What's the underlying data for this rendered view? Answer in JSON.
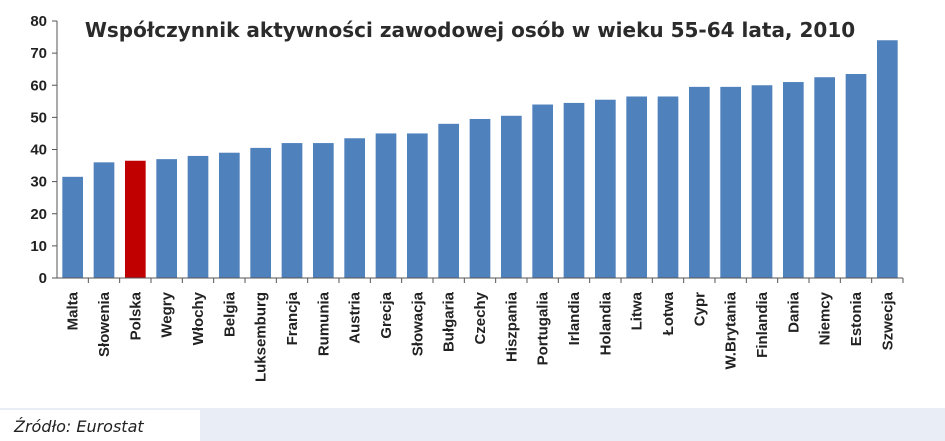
{
  "chart_data": {
    "type": "bar",
    "title": "Współczynnik aktywności zawodowej osób w wieku 55-64 lata, 2010",
    "xlabel": "",
    "ylabel": "",
    "ylim": [
      0,
      80
    ],
    "yticks": [
      0,
      10,
      20,
      30,
      40,
      50,
      60,
      70,
      80
    ],
    "grid": false,
    "categories": [
      "Malta",
      "Słowenia",
      "Polska",
      "Wegry",
      "Włochy",
      "Belgia",
      "Luksemburg",
      "Francja",
      "Rumunia",
      "Austria",
      "Grecja",
      "Słowacja",
      "Bułgaria",
      "Czechy",
      "Hiszpania",
      "Portugalia",
      "Irlandia",
      "Holandia",
      "Litwa",
      "Łotwa",
      "Cypr",
      "W.Brytania",
      "Finlandia",
      "Dania",
      "Niemcy",
      "Estonia",
      "Szwecja"
    ],
    "values": [
      31.5,
      36,
      36.5,
      37,
      38,
      39,
      40.5,
      42,
      42,
      43.5,
      45,
      45,
      48,
      49.5,
      50.5,
      54,
      54.5,
      55.5,
      56.5,
      56.5,
      59.5,
      59.5,
      60,
      61,
      62.5,
      63.5,
      74
    ],
    "colors": {
      "default": "#4f81bd",
      "highlight": "#c00000"
    },
    "highlight_index": 2
  },
  "source": {
    "text": "Źródło: Eurostat"
  }
}
